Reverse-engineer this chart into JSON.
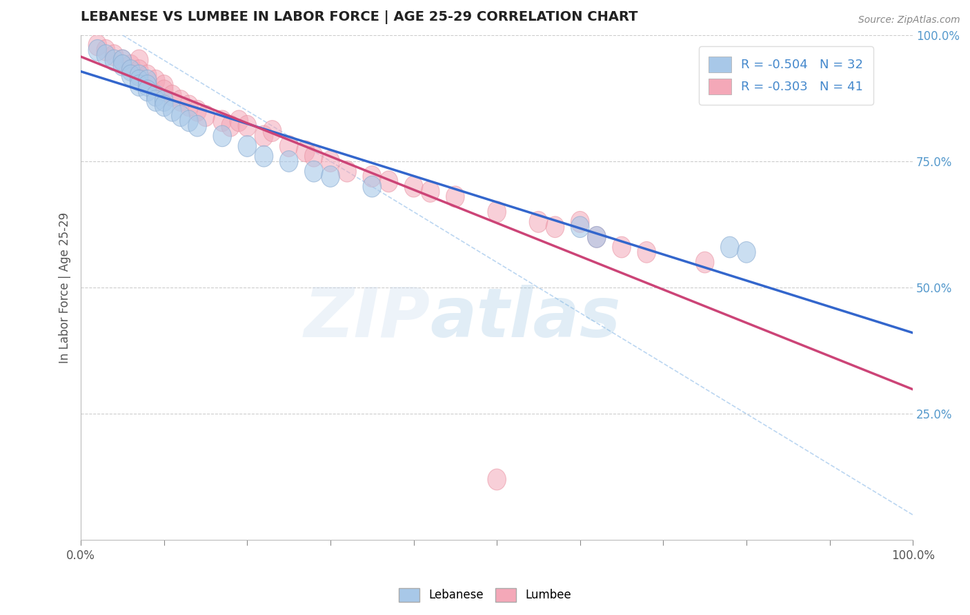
{
  "title": "LEBANESE VS LUMBEE IN LABOR FORCE | AGE 25-29 CORRELATION CHART",
  "ylabel": "In Labor Force | Age 25-29",
  "source_text": "Source: ZipAtlas.com",
  "watermark_zip": "ZIP",
  "watermark_atlas": "atlas",
  "xlim": [
    0.0,
    1.0
  ],
  "ylim": [
    0.0,
    1.0
  ],
  "y_ticks_right": [
    0.25,
    0.5,
    0.75,
    1.0
  ],
  "y_tick_labels_right": [
    "25.0%",
    "50.0%",
    "75.0%",
    "100.0%"
  ],
  "lebanese_R": -0.504,
  "lebanese_N": 32,
  "lumbee_R": -0.303,
  "lumbee_N": 41,
  "lebanese_color": "#a8c8e8",
  "lumbee_color": "#f4a8b8",
  "lebanese_edge_color": "#88aad0",
  "lumbee_edge_color": "#e890a0",
  "lebanese_line_color": "#3366cc",
  "lumbee_line_color": "#cc4477",
  "diag_line_color": "#aaccee",
  "grid_color": "#cccccc",
  "background_color": "#ffffff",
  "title_color": "#222222",
  "axis_label_color": "#555555",
  "right_tick_color": "#5599cc",
  "legend_label_color": "#4488cc",
  "lebanese_x": [
    0.02,
    0.03,
    0.04,
    0.05,
    0.05,
    0.06,
    0.06,
    0.07,
    0.07,
    0.07,
    0.08,
    0.08,
    0.08,
    0.09,
    0.09,
    0.1,
    0.1,
    0.11,
    0.12,
    0.13,
    0.14,
    0.17,
    0.2,
    0.22,
    0.25,
    0.28,
    0.3,
    0.35,
    0.6,
    0.62,
    0.78,
    0.8
  ],
  "lebanese_y": [
    0.97,
    0.96,
    0.95,
    0.95,
    0.94,
    0.93,
    0.92,
    0.92,
    0.91,
    0.9,
    0.91,
    0.9,
    0.89,
    0.88,
    0.87,
    0.87,
    0.86,
    0.85,
    0.84,
    0.83,
    0.82,
    0.8,
    0.78,
    0.76,
    0.75,
    0.73,
    0.72,
    0.7,
    0.62,
    0.6,
    0.58,
    0.57
  ],
  "lumbee_x": [
    0.02,
    0.03,
    0.04,
    0.05,
    0.06,
    0.07,
    0.07,
    0.08,
    0.09,
    0.1,
    0.1,
    0.11,
    0.12,
    0.13,
    0.14,
    0.15,
    0.17,
    0.18,
    0.19,
    0.2,
    0.22,
    0.23,
    0.25,
    0.27,
    0.28,
    0.3,
    0.32,
    0.35,
    0.37,
    0.4,
    0.42,
    0.45,
    0.5,
    0.55,
    0.57,
    0.6,
    0.62,
    0.65,
    0.68,
    0.75,
    0.5
  ],
  "lumbee_y": [
    0.98,
    0.97,
    0.96,
    0.95,
    0.94,
    0.95,
    0.93,
    0.92,
    0.91,
    0.9,
    0.89,
    0.88,
    0.87,
    0.86,
    0.85,
    0.84,
    0.83,
    0.82,
    0.83,
    0.82,
    0.8,
    0.81,
    0.78,
    0.77,
    0.76,
    0.75,
    0.73,
    0.72,
    0.71,
    0.7,
    0.69,
    0.68,
    0.65,
    0.63,
    0.62,
    0.63,
    0.6,
    0.58,
    0.57,
    0.55,
    0.12
  ]
}
